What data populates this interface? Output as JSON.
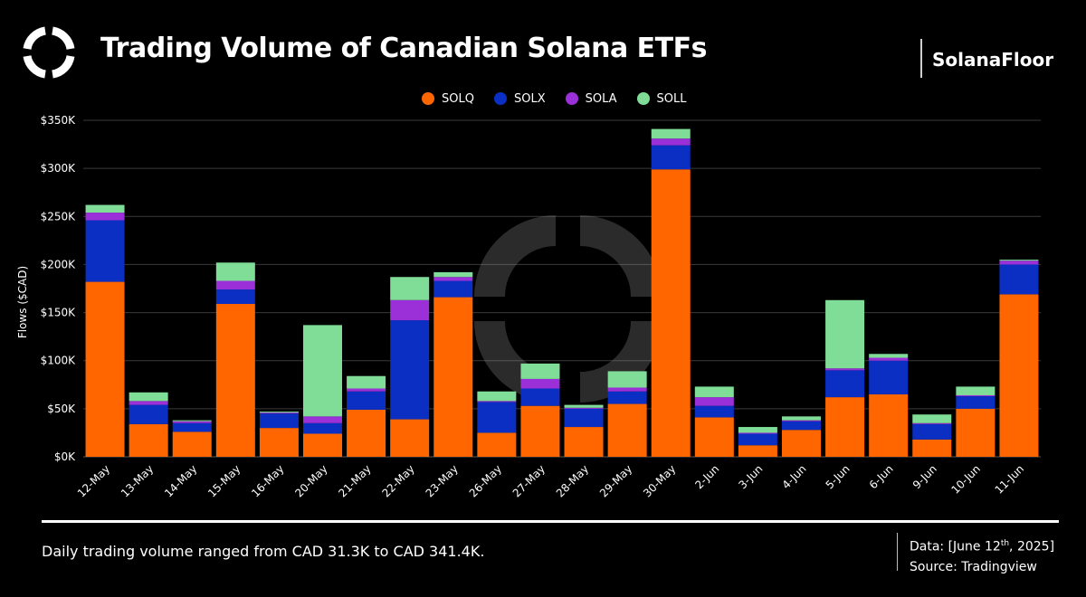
{
  "header": {
    "title": "Trading Volume of Canadian Solana ETFs",
    "brand": "SolanaFloor"
  },
  "footer": {
    "summary": "Daily trading volume ranged from CAD 31.3K to CAD 341.4K.",
    "data_prefix": "Data: [June 12",
    "data_sup": "th",
    "data_suffix": ", 2025]",
    "source": "Source: Tradingview"
  },
  "chart_data": {
    "type": "bar",
    "stacked": true,
    "title": "Trading Volume of Canadian Solana ETFs",
    "xlabel": "",
    "ylabel": "Flows ($CAD)",
    "ylim": [
      0,
      350000
    ],
    "yticks": [
      0,
      50000,
      100000,
      150000,
      200000,
      250000,
      300000,
      350000
    ],
    "ytick_labels": [
      "$0K",
      "$50K",
      "$100K",
      "$150K",
      "$200K",
      "$250K",
      "$300K",
      "$350K"
    ],
    "grid": true,
    "legend_position": "top-center",
    "categories": [
      "12-May",
      "13-May",
      "14-May",
      "15-May",
      "16-May",
      "20-May",
      "21-May",
      "22-May",
      "23-May",
      "26-May",
      "27-May",
      "28-May",
      "29-May",
      "30-May",
      "2-Jun",
      "3-Jun",
      "4-Jun",
      "5-Jun",
      "6-Jun",
      "9-Jun",
      "10-Jun",
      "11-Jun"
    ],
    "series": [
      {
        "name": "SOLQ",
        "color": "#FF6600",
        "values": [
          182000,
          34000,
          26000,
          159000,
          30000,
          24000,
          49000,
          39000,
          166000,
          25000,
          53000,
          31000,
          55000,
          299000,
          41000,
          12000,
          28000,
          62000,
          65000,
          18000,
          50000,
          169000
        ]
      },
      {
        "name": "SOLX",
        "color": "#0A2FC2",
        "values": [
          64000,
          20000,
          9000,
          15000,
          15000,
          11000,
          19000,
          103000,
          17000,
          32000,
          18000,
          19000,
          13000,
          25000,
          12000,
          12000,
          9000,
          28000,
          35000,
          16000,
          13000,
          31000
        ]
      },
      {
        "name": "SOLA",
        "color": "#9B30D9",
        "values": [
          8000,
          4000,
          2000,
          9000,
          1000,
          7000,
          3000,
          21000,
          4000,
          1000,
          10000,
          1000,
          4000,
          7000,
          9000,
          1000,
          1000,
          2000,
          3000,
          1000,
          1000,
          4000
        ]
      },
      {
        "name": "SOLL",
        "color": "#7FDD97",
        "values": [
          8000,
          9000,
          1000,
          19000,
          1000,
          95000,
          13000,
          24000,
          5000,
          10000,
          16000,
          3000,
          17000,
          10000,
          11000,
          6000,
          4000,
          71000,
          4000,
          9000,
          9000,
          1000
        ]
      }
    ]
  }
}
